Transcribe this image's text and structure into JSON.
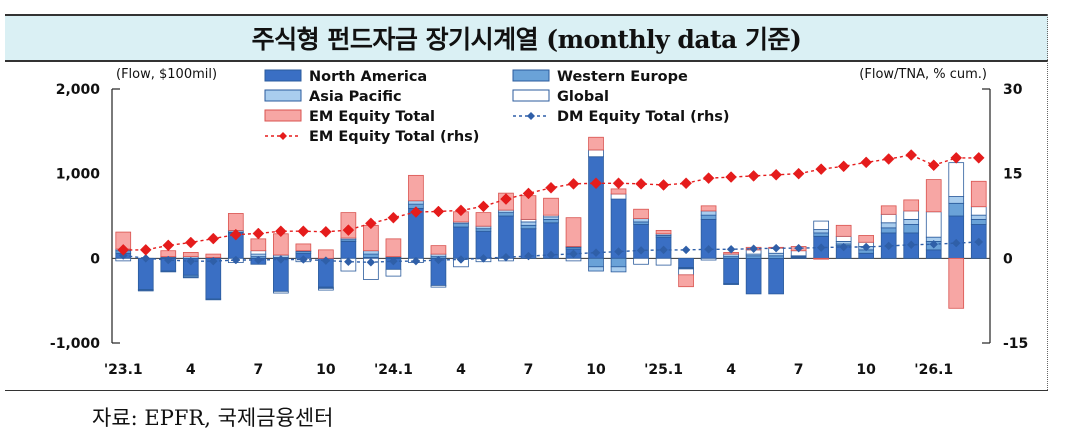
{
  "header": {
    "title": "주식형 펀드자금 장기시계열 (monthly data 기준)"
  },
  "footer": {
    "source": "자료: EPFR,  국제금융센터"
  },
  "chart_data": {
    "type": "bar",
    "stacked": true,
    "left_axis": {
      "unit": "(Flow, $100mil)",
      "ylim": [
        -1000,
        2000
      ],
      "ticks": [
        "2,000",
        "1,000",
        "0",
        "-1,000"
      ],
      "tick_values": [
        2000,
        1000,
        0,
        -1000
      ]
    },
    "right_axis": {
      "unit": "(Flow/TNA, % cum.)",
      "ylim": [
        -15,
        30
      ],
      "ticks": [
        "30",
        "15",
        "0",
        "-15"
      ],
      "tick_values": [
        30,
        15,
        0,
        -15
      ]
    },
    "x_tick_labels": [
      "'23.1",
      "4",
      "7",
      "10",
      "'24.1",
      "4",
      "7",
      "10",
      "'25.1",
      "4",
      "7",
      "10",
      "'26.1"
    ],
    "x_tick_months": [
      0,
      3,
      6,
      9,
      12,
      15,
      18,
      21,
      24,
      27,
      30,
      33,
      36
    ],
    "n_months": 39,
    "grid": false,
    "legend_position": "top",
    "colors": {
      "north_america": "#3a6fc4",
      "western_europe": "#6aa2d8",
      "asia_pacific": "#a9cdee",
      "global": "#ffffff",
      "em_bar": "#f7a6a4",
      "em_line": "#e51c1c",
      "dm_line": "#2f5fa8",
      "outline": "#2b5b9c"
    },
    "series": [
      {
        "name": "North America",
        "kind": "bar",
        "values": [
          60,
          -370,
          -150,
          -200,
          -480,
          300,
          -70,
          -390,
          60,
          -340,
          200,
          10,
          -130,
          590,
          -320,
          370,
          320,
          500,
          350,
          420,
          110,
          1200,
          700,
          400,
          250,
          -110,
          460,
          -300,
          -420,
          -420,
          10,
          260,
          150,
          60,
          300,
          300,
          100,
          500,
          400
        ]
      },
      {
        "name": "Western Europe",
        "kind": "bar",
        "values": [
          30,
          -5,
          -10,
          -20,
          -10,
          10,
          20,
          10,
          20,
          -5,
          20,
          40,
          10,
          50,
          20,
          40,
          30,
          40,
          40,
          40,
          20,
          -100,
          -100,
          30,
          20,
          -5,
          50,
          20,
          30,
          30,
          10,
          40,
          20,
          40,
          60,
          100,
          100,
          150,
          60
        ]
      },
      {
        "name": "Asia Pacific",
        "kind": "bar",
        "values": [
          20,
          0,
          10,
          20,
          10,
          20,
          30,
          30,
          10,
          -10,
          20,
          40,
          10,
          40,
          30,
          20,
          30,
          30,
          40,
          30,
          10,
          -50,
          -60,
          40,
          20,
          -10,
          50,
          30,
          20,
          30,
          10,
          40,
          30,
          40,
          60,
          60,
          50,
          80,
          50
        ]
      },
      {
        "name": "Global",
        "kind": "bar",
        "values": [
          -30,
          -10,
          10,
          -10,
          0,
          -50,
          40,
          -20,
          -40,
          -20,
          -150,
          -250,
          -80,
          -50,
          -20,
          -100,
          -40,
          -30,
          30,
          20,
          -30,
          80,
          60,
          -70,
          -80,
          -70,
          -20,
          -10,
          50,
          60,
          60,
          100,
          60,
          50,
          100,
          100,
          300,
          400,
          100
        ]
      },
      {
        "name": "EM Equity Total",
        "kind": "bar",
        "values": [
          200,
          0,
          70,
          50,
          40,
          200,
          140,
          250,
          80,
          100,
          300,
          300,
          210,
          300,
          100,
          120,
          160,
          200,
          280,
          200,
          340,
          150,
          60,
          110,
          40,
          -140,
          60,
          20,
          30,
          10,
          50,
          -10,
          130,
          80,
          100,
          130,
          380,
          -590,
          300
        ]
      },
      {
        "name": "DM Equity Total (rhs)",
        "kind": "line",
        "axis": "right",
        "values": [
          0.5,
          0.0,
          -0.3,
          -0.5,
          -0.5,
          -0.3,
          -0.3,
          -0.2,
          -0.2,
          -0.4,
          -0.6,
          -0.7,
          -0.5,
          -0.5,
          -0.3,
          -0.2,
          0.0,
          0.2,
          0.4,
          0.6,
          0.8,
          1.0,
          1.2,
          1.4,
          1.5,
          1.5,
          1.6,
          1.6,
          1.7,
          1.8,
          1.8,
          1.9,
          2.0,
          2.0,
          2.2,
          2.4,
          2.5,
          2.7,
          2.9
        ]
      },
      {
        "name": "EM Equity Total (rhs)",
        "kind": "line",
        "axis": "right",
        "values": [
          1.5,
          1.5,
          2.3,
          2.8,
          3.5,
          4.2,
          4.4,
          4.8,
          4.8,
          4.7,
          5.0,
          6.2,
          7.2,
          8.2,
          8.3,
          8.5,
          9.2,
          10.5,
          11.5,
          12.5,
          13.2,
          13.3,
          13.3,
          13.2,
          13.0,
          13.3,
          14.2,
          14.4,
          14.6,
          14.8,
          15.0,
          15.8,
          16.3,
          17.0,
          17.6,
          18.3,
          16.5,
          17.8,
          17.8
        ]
      }
    ]
  },
  "legend": [
    {
      "label": "North America",
      "kind": "bar",
      "color_key": "north_america"
    },
    {
      "label": "Western Europe",
      "kind": "bar",
      "color_key": "western_europe"
    },
    {
      "label": "Asia Pacific",
      "kind": "bar",
      "color_key": "asia_pacific"
    },
    {
      "label": "Global",
      "kind": "bar",
      "color_key": "global"
    },
    {
      "label": "EM Equity Total",
      "kind": "bar",
      "color_key": "em_bar"
    },
    {
      "label": "DM Equity Total (rhs)",
      "kind": "line",
      "color_key": "dm_line",
      "marker": "diamond"
    },
    {
      "label": "EM Equity Total (rhs)",
      "kind": "line",
      "color_key": "em_line",
      "marker": "diamond",
      "dashed": true
    }
  ]
}
